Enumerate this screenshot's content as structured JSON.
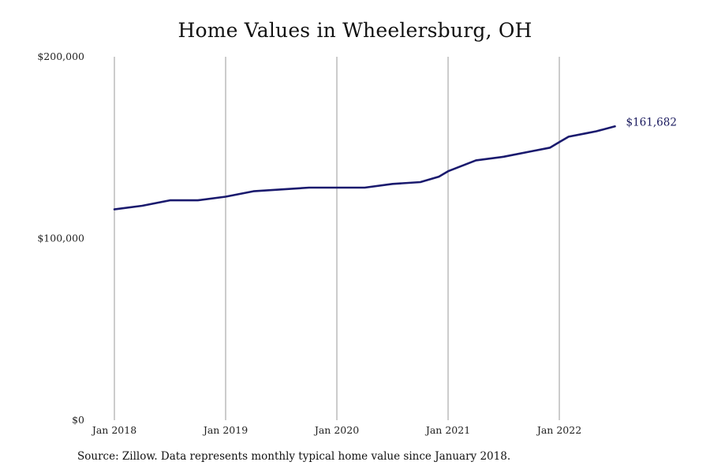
{
  "chart_data": {
    "type": "line",
    "title": "Home Values in Wheelersburg, OH",
    "xlabel": "",
    "ylabel": "",
    "ylim": [
      0,
      200000
    ],
    "y_ticks": [
      "$0",
      "$100,000",
      "$200,000"
    ],
    "x_ticks": [
      "Jan 2018",
      "Jan 2019",
      "Jan 2020",
      "Jan 2021",
      "Jan 2022"
    ],
    "grid": "vertical",
    "line_color": "#1a1a6e",
    "end_label": "$161,682",
    "series": [
      {
        "points": [
          [
            "2018-01",
            116000
          ],
          [
            "2018-04",
            118000
          ],
          [
            "2018-07",
            121000
          ],
          [
            "2018-10",
            121000
          ],
          [
            "2019-01",
            123000
          ],
          [
            "2019-04",
            126000
          ],
          [
            "2019-07",
            127000
          ],
          [
            "2019-10",
            128000
          ],
          [
            "2020-01",
            128000
          ],
          [
            "2020-04",
            128000
          ],
          [
            "2020-07",
            130000
          ],
          [
            "2020-10",
            131000
          ],
          [
            "2020-12",
            134000
          ],
          [
            "2021-01",
            137000
          ],
          [
            "2021-04",
            143000
          ],
          [
            "2021-07",
            145000
          ],
          [
            "2021-10",
            148000
          ],
          [
            "2021-12",
            150000
          ],
          [
            "2022-01",
            153000
          ],
          [
            "2022-02",
            156000
          ],
          [
            "2022-04",
            158000
          ],
          [
            "2022-05",
            159000
          ],
          [
            "2022-07",
            161682
          ]
        ]
      }
    ]
  },
  "source_note": "Source: Zillow. Data represents monthly typical home value since January 2018."
}
